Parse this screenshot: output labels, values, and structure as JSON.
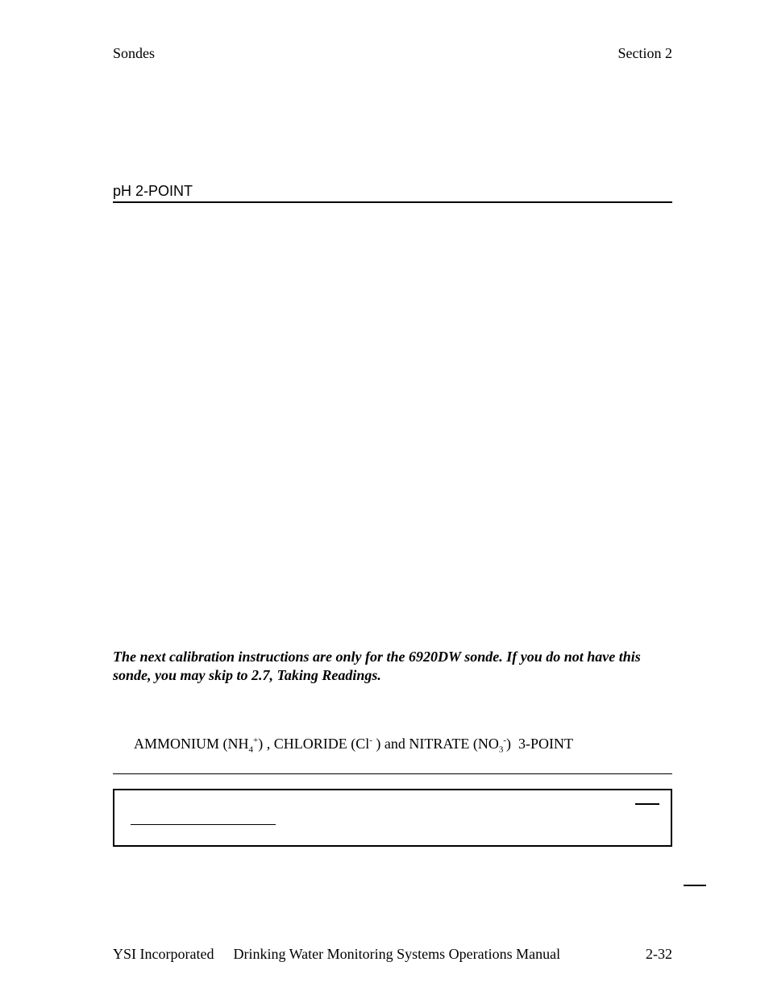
{
  "header": {
    "left": "Sondes",
    "right": "Section 2"
  },
  "section_title": "pH 2-POINT",
  "note": "The next calibration instructions are only for the 6920DW sonde. If you do not have this sonde, you may skip to 2.7, Taking Readings.",
  "sub_heading": {
    "prefix": "AMMONIUM (NH",
    "sub1": "4",
    "sup1": "+",
    "mid1": ") , CHLORIDE (Cl",
    "sup2": "-",
    "mid2": " ) and NITRATE (NO",
    "sub3": "3",
    "sup3": "-",
    "suffix": ")  3-POINT"
  },
  "footer": {
    "company": "YSI Incorporated",
    "manual": "Drinking Water Monitoring Systems Operations Manual",
    "page": "2-32"
  },
  "colors": {
    "background": "#ffffff",
    "text": "#000000",
    "rule": "#000000"
  },
  "typography": {
    "body_family": "Times New Roman",
    "heading_family": "Arial",
    "body_size_pt": 13,
    "line_height": 1.28
  }
}
